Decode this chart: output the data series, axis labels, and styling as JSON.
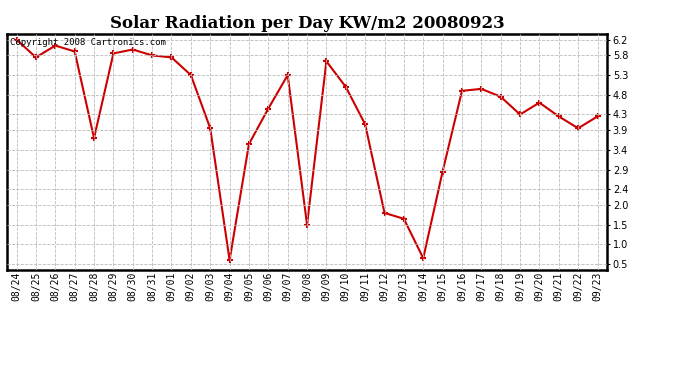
{
  "title": "Solar Radiation per Day KW/m2 20080923",
  "copyright": "Copyright 2008 Cartronics.com",
  "dates": [
    "08/24",
    "08/25",
    "08/26",
    "08/27",
    "08/28",
    "08/29",
    "08/30",
    "08/31",
    "09/01",
    "09/02",
    "09/03",
    "09/04",
    "09/05",
    "09/06",
    "09/07",
    "09/08",
    "09/09",
    "09/10",
    "09/11",
    "09/12",
    "09/13",
    "09/14",
    "09/15",
    "09/16",
    "09/17",
    "09/18",
    "09/19",
    "09/20",
    "09/21",
    "09/22",
    "09/23"
  ],
  "values": [
    6.2,
    5.75,
    6.05,
    5.9,
    3.7,
    5.85,
    5.95,
    5.8,
    5.75,
    5.3,
    3.95,
    0.6,
    3.55,
    4.45,
    5.3,
    1.5,
    5.65,
    5.0,
    4.05,
    1.8,
    1.65,
    0.65,
    2.85,
    4.9,
    4.95,
    4.75,
    4.3,
    4.6,
    4.25,
    3.95,
    4.25
  ],
  "line_color": "#cc0000",
  "marker": "+",
  "marker_size": 5,
  "line_width": 1.5,
  "bg_color": "#ffffff",
  "plot_bg_color": "#ffffff",
  "grid_color": "#bbbbbb",
  "grid_style": "--",
  "ylim": [
    0.35,
    6.35
  ],
  "yticks": [
    0.5,
    1.0,
    1.5,
    2.0,
    2.4,
    2.9,
    3.4,
    3.9,
    4.3,
    4.8,
    5.3,
    5.8,
    6.2
  ],
  "title_fontsize": 12,
  "tick_fontsize": 7,
  "copyright_fontsize": 6.5
}
